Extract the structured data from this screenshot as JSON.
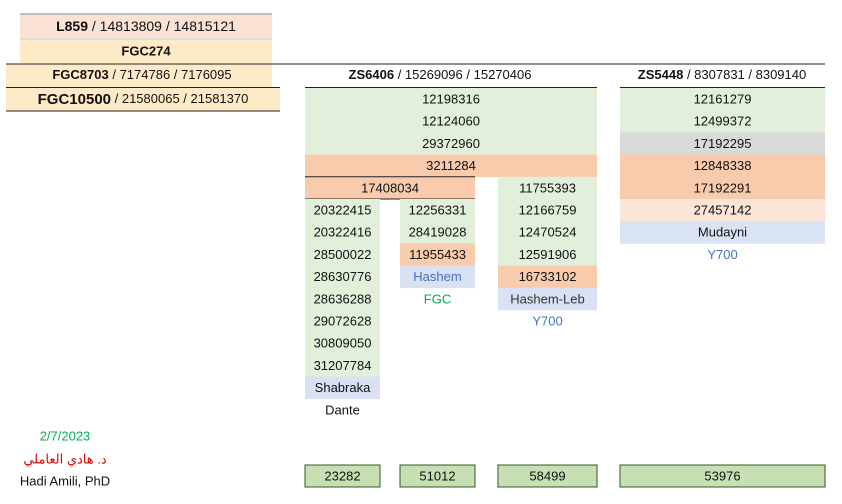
{
  "left": [
    {
      "bold": "L859",
      "rest": " / 14813809 / 14815121"
    },
    {
      "bold": "FGC274"
    },
    {
      "bold": "FGC8703",
      "rest": " / 7174786 / 7176095"
    },
    {
      "bold": "FGC10500",
      "rest": " / 21580065 / 21581370"
    }
  ],
  "zs6406": {
    "header_bold": "ZS6406",
    "header_rest": " / 15269096 / 15270406",
    "shared": [
      "12198316",
      "12124060",
      "29372960",
      "3211284"
    ],
    "sub_branch": "17408034",
    "columns": [
      {
        "cells": [
          "20322415",
          "20322416",
          "28500022",
          "28630776",
          "28636288",
          "29072628",
          "30809050",
          "31207784",
          "Shabraka",
          "Dante"
        ],
        "total": "23282"
      },
      {
        "cells": [
          "12256331",
          "28419028",
          "11955433",
          "Hashem",
          "FGC"
        ],
        "total": "51012"
      },
      {
        "cells": [
          "11755393",
          "12166759",
          "12470524",
          "12591906",
          "16733102",
          "Hashem-Leb",
          "Y700"
        ],
        "total": "58499"
      }
    ]
  },
  "zs5448": {
    "header_bold": "ZS5448",
    "header_rest": " / 8307831 / 8309140",
    "cells": [
      "12161279",
      "12499372",
      "17192295",
      "12848338",
      "17192291",
      "27457142",
      "Mudayni",
      "Y700"
    ],
    "total": "53976"
  },
  "footer": {
    "date": "2/7/2023",
    "arabic_name": "د. هادي العاملي",
    "name": "Hadi Amili, PhD"
  }
}
